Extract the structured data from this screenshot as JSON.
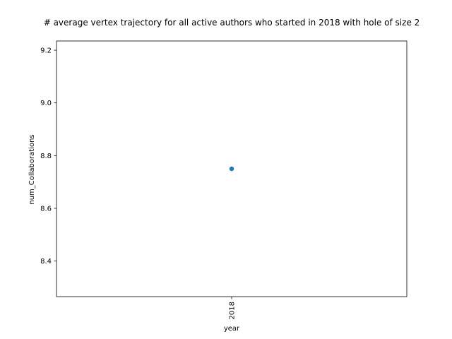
{
  "chart_data": {
    "type": "scatter",
    "title": "# average vertex trajectory for all active authors who started in 2018 with hole of size 2",
    "xlabel": "year",
    "ylabel": "num_Collaborations",
    "x_categories": [
      "2018"
    ],
    "series": [
      {
        "values": [
          8.75
        ],
        "color": "#1f77b4"
      }
    ],
    "ylim": [
      8.265,
      9.235
    ],
    "yticks": [
      8.4,
      8.6,
      8.8,
      9.0,
      9.2
    ],
    "ytick_labels": [
      "8.4",
      "8.6",
      "8.8",
      "9.0",
      "9.2"
    ],
    "grid": false,
    "legend": "none"
  }
}
